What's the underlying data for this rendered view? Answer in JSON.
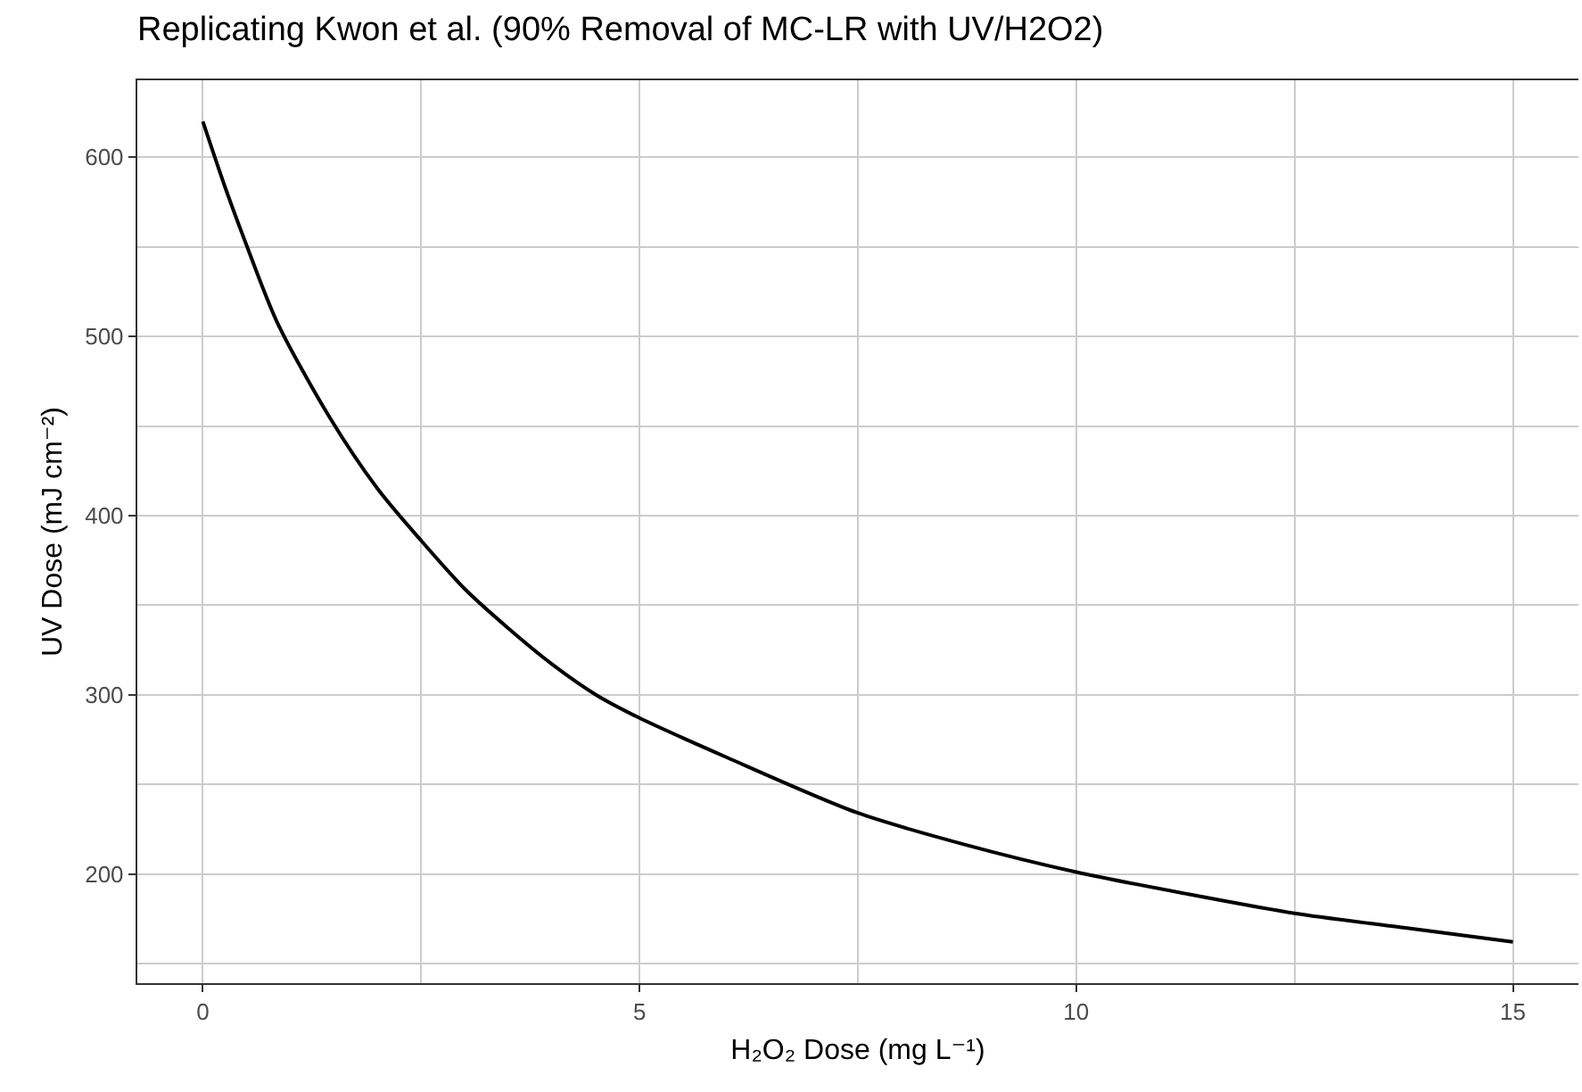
{
  "chart_data": {
    "type": "line",
    "title": "Replicating Kwon et al. (90% Removal of MC-LR with UV/H2O2)",
    "xlabel": "H₂O₂ Dose (mg L⁻¹)",
    "ylabel": "UV Dose (mJ cm⁻²)",
    "x": [
      0,
      0.25,
      0.5,
      0.85,
      1.45,
      2,
      2.5,
      3,
      3.5,
      4,
      4.5,
      5,
      6,
      7.5,
      8.75,
      10,
      11.25,
      12.5,
      13.75,
      15
    ],
    "series": [
      {
        "color": "#000000",
        "values": [
          620,
          584,
          551,
          508,
          455,
          415,
          386,
          359,
          337,
          317,
          300,
          287,
          265,
          234,
          216,
          201,
          189,
          178,
          170,
          162
        ]
      }
    ],
    "xlim": [
      -0.75,
      15.75
    ],
    "ylim": [
      139,
      643
    ],
    "xticks": [
      0,
      5,
      10,
      15
    ],
    "yticks": [
      200,
      300,
      400,
      500,
      600
    ],
    "grid": true,
    "marker": "none",
    "line_style": "solid"
  }
}
